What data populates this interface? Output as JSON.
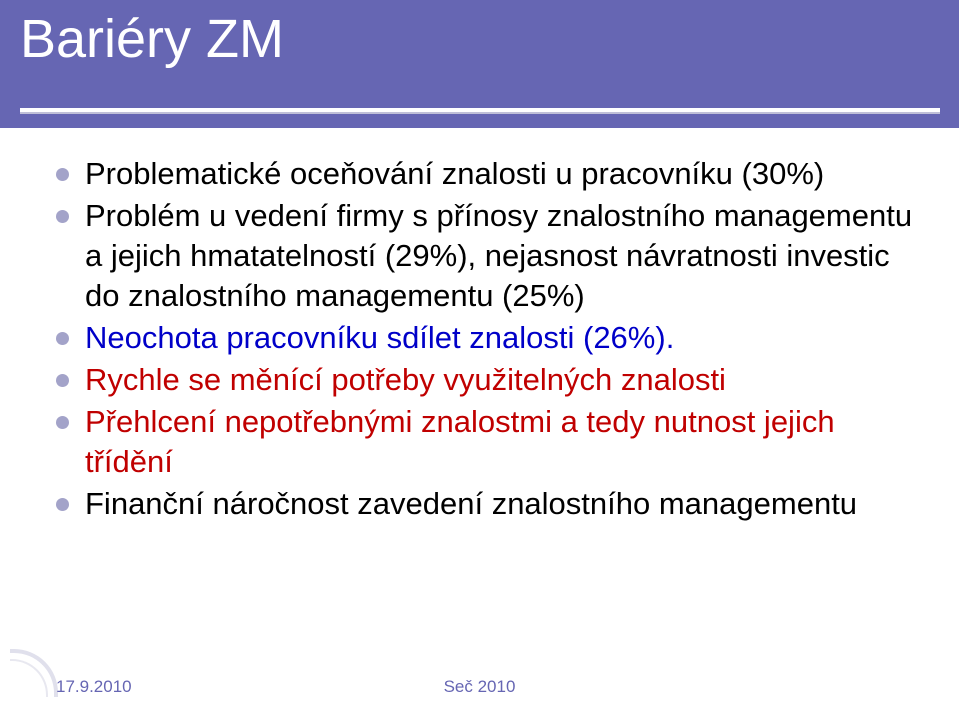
{
  "slide": {
    "title": "Bariéry ZM",
    "title_color": "#ffffff",
    "title_fontsize": 54,
    "band_color": "#6666b3",
    "underline_color": "#ffffff"
  },
  "bullets": [
    {
      "text": "Problematické oceňování znalosti u pracovníku (30%)",
      "color": "#000000",
      "dot_color": "#a3a3c9"
    },
    {
      "text": "Problém u vedení firmy s přínosy znalostního managementu a jejich hmatatelností (29%), nejasnost návratnosti investic do znalostního managementu (25%)",
      "color": "#000000",
      "dot_color": "#a3a3c9"
    },
    {
      "text": "Neochota pracovníku sdílet znalosti (26%).",
      "color": "#0000c8",
      "dot_color": "#a3a3c9"
    },
    {
      "text": "Rychle se měnící potřeby využitelných znalosti",
      "color": "#c00000",
      "dot_color": "#a3a3c9"
    },
    {
      "text": "Přehlcení nepotřebnými znalostmi a tedy nutnost jejich třídění",
      "color": "#c00000",
      "dot_color": "#a3a3c9"
    },
    {
      "text": "Finanční náročnost zavedení znalostního managementu",
      "color": "#000000",
      "dot_color": "#a3a3c9"
    }
  ],
  "body_fontsize": 31,
  "footer": {
    "date": "17.9.2010",
    "center": "Seč 2010",
    "color": "#6666b3",
    "fontsize": 17
  }
}
